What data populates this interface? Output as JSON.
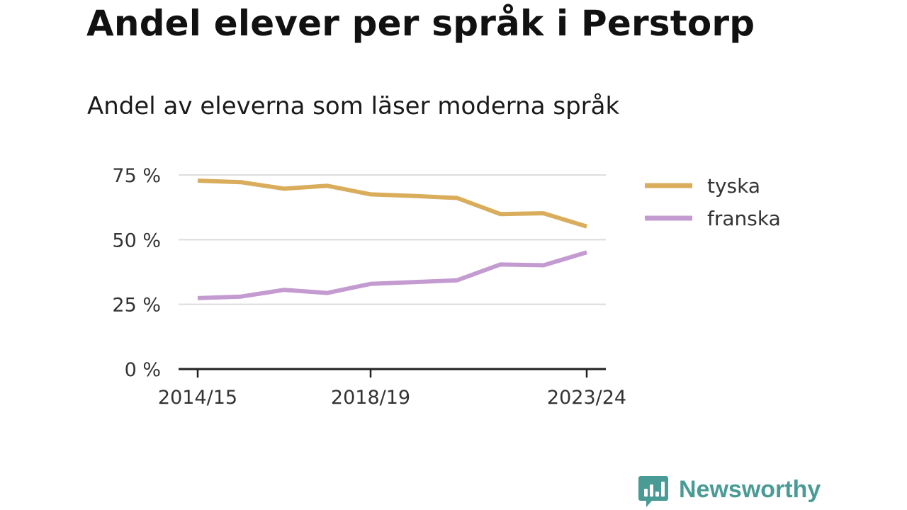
{
  "title": "Andel elever per språk i Perstorp",
  "subtitle": "Andel av eleverna som läser moderna språk",
  "logo": {
    "text": "Newsworthy",
    "icon": "bar-chart-bubble-icon",
    "color": "#4a9b95"
  },
  "chart_data": {
    "type": "line",
    "x": [
      "2014/15",
      "2015/16",
      "2016/17",
      "2017/18",
      "2018/19",
      "2019/20",
      "2020/21",
      "2021/22",
      "2022/23",
      "2023/24"
    ],
    "x_tick_labels": [
      "2014/15",
      "2018/19",
      "2023/24"
    ],
    "y_tick_labels": [
      "0 %",
      "25 %",
      "50 %",
      "75 %"
    ],
    "y_ticks": [
      0,
      25,
      50,
      75
    ],
    "ylim": [
      0,
      75
    ],
    "grid": true,
    "legend_position": "right",
    "series": [
      {
        "name": "tyska",
        "color": "#d9ad5b",
        "values": [
          72.8,
          72.2,
          69.7,
          70.8,
          67.5,
          66.9,
          66.1,
          59.9,
          60.2,
          55.1
        ]
      },
      {
        "name": "franska",
        "color": "#c39bd0",
        "values": [
          27.4,
          28.0,
          30.6,
          29.4,
          32.9,
          33.6,
          34.3,
          40.4,
          40.1,
          45.1
        ]
      }
    ]
  }
}
